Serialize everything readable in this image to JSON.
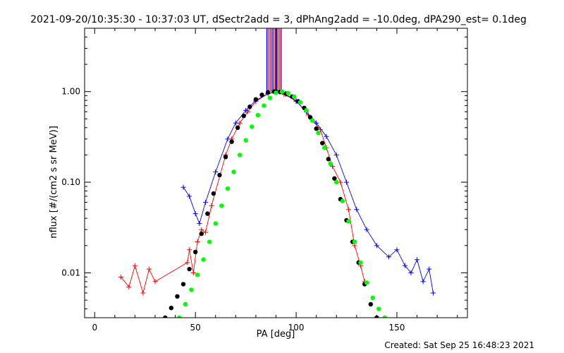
{
  "chart_data": {
    "type": "line",
    "title": "2021-09-20/10:35:30 - 10:37:03 UT, dSectr2add = 3, dPhAng2add = -10.0deg, dPA290_est=  0.1deg",
    "xlabel": "PA [deg]",
    "ylabel": "nflux [#/(cm2 s sr MeV)]",
    "xlim": [
      -5,
      185
    ],
    "ylim": [
      0.0032,
      5.0
    ],
    "yscale": "log",
    "x_ticks": [
      "0",
      "50",
      "100",
      "150"
    ],
    "y_ticks": [
      "0.01",
      "0.10",
      "1.00"
    ],
    "grid": false,
    "legend": "none",
    "footer": "Created: Sat Sep 25 16:48:23 2021",
    "colors": {
      "red_traces": "#ff0000",
      "blue_traces": "#0000ff",
      "fit_black": "#000000",
      "fit_green": "#00ff00",
      "vertical_lines": [
        "#0000ff",
        "#ff0000",
        "#800080"
      ]
    },
    "vertical_lines_x": [
      85.5,
      86.5,
      87.5,
      88.5,
      89.5,
      90.0,
      90.5,
      91.5,
      92.5
    ],
    "series": [
      {
        "color": "#ff0000",
        "style": "line-plus",
        "x": [
          13,
          17,
          20,
          24,
          27,
          30,
          46,
          47,
          49,
          51,
          53,
          55,
          58,
          65,
          68,
          72,
          76,
          80,
          86,
          90,
          94,
          100,
          106,
          112,
          115,
          118,
          122,
          126,
          129,
          132,
          134
        ],
        "y": [
          0.009,
          0.007,
          0.012,
          0.006,
          0.011,
          0.008,
          0.013,
          0.018,
          0.01,
          0.022,
          0.03,
          0.028,
          0.055,
          0.2,
          0.3,
          0.45,
          0.6,
          0.78,
          0.95,
          1.0,
          0.93,
          0.8,
          0.55,
          0.38,
          0.24,
          0.15,
          0.1,
          0.05,
          0.02,
          0.012,
          0.008
        ]
      },
      {
        "color": "#0000ff",
        "style": "line-plus",
        "x": [
          44,
          47,
          50,
          52,
          55,
          60,
          66,
          70,
          75,
          80,
          86,
          90,
          95,
          100,
          105,
          110,
          115,
          120,
          125,
          130,
          135,
          140,
          146,
          150,
          154,
          157,
          160,
          163,
          166,
          168
        ],
        "y": [
          0.088,
          0.07,
          0.045,
          0.035,
          0.06,
          0.13,
          0.3,
          0.45,
          0.62,
          0.8,
          0.95,
          1.0,
          0.93,
          0.78,
          0.6,
          0.45,
          0.32,
          0.2,
          0.1,
          0.05,
          0.03,
          0.02,
          0.015,
          0.018,
          0.012,
          0.01,
          0.014,
          0.008,
          0.011,
          0.006
        ]
      },
      {
        "color": "#000000",
        "style": "dots",
        "x": [
          35,
          38,
          41,
          44,
          47,
          50,
          53,
          56,
          59,
          62,
          65,
          68,
          71,
          74,
          77,
          80,
          83,
          86,
          89,
          90,
          92,
          95,
          98,
          101,
          104,
          107,
          110,
          113,
          116,
          119,
          122,
          125,
          128,
          131,
          134,
          137,
          140
        ],
        "y": [
          0.0032,
          0.0041,
          0.0055,
          0.0075,
          0.011,
          0.017,
          0.027,
          0.045,
          0.075,
          0.12,
          0.19,
          0.28,
          0.4,
          0.54,
          0.68,
          0.82,
          0.92,
          0.98,
          1.0,
          1.0,
          0.99,
          0.95,
          0.88,
          0.78,
          0.66,
          0.52,
          0.39,
          0.27,
          0.18,
          0.11,
          0.065,
          0.038,
          0.022,
          0.013,
          0.0075,
          0.0045,
          0.0032
        ]
      },
      {
        "color": "#00ff00",
        "style": "dots",
        "x": [
          42,
          45,
          48,
          51,
          54,
          57,
          60,
          63,
          66,
          69,
          72,
          75,
          78,
          81,
          84,
          87,
          90,
          93,
          96,
          99,
          102,
          105,
          108,
          111,
          114,
          117,
          120,
          123,
          126,
          129,
          132,
          135,
          138,
          141,
          144
        ],
        "y": [
          0.0032,
          0.0045,
          0.0065,
          0.0095,
          0.014,
          0.022,
          0.035,
          0.055,
          0.085,
          0.13,
          0.2,
          0.29,
          0.41,
          0.55,
          0.7,
          0.85,
          0.97,
          1.0,
          0.96,
          0.88,
          0.76,
          0.62,
          0.48,
          0.35,
          0.24,
          0.16,
          0.1,
          0.062,
          0.037,
          0.022,
          0.013,
          0.0078,
          0.0053,
          0.004,
          0.0032
        ]
      }
    ]
  }
}
